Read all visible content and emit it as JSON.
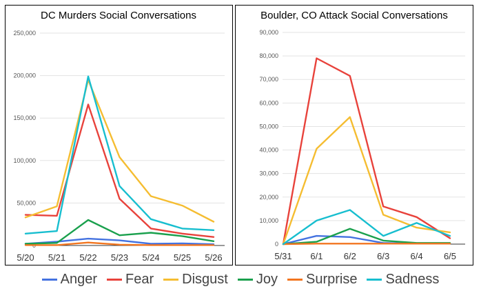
{
  "legend": {
    "items": [
      {
        "label": "Anger",
        "color": "#4472e0"
      },
      {
        "label": "Fear",
        "color": "#e8423b"
      },
      {
        "label": "Disgust",
        "color": "#f5bd31"
      },
      {
        "label": "Joy",
        "color": "#1aa04d"
      },
      {
        "label": "Surprise",
        "color": "#f2751f"
      },
      {
        "label": "Sadness",
        "color": "#17becf"
      }
    ]
  },
  "chart_data": [
    {
      "type": "line",
      "title": "DC Murders Social Conversations",
      "categories": [
        "5/20",
        "5/21",
        "5/22",
        "5/23",
        "5/24",
        "5/25",
        "5/26"
      ],
      "ylim": [
        0,
        250000
      ],
      "yticks": [
        0,
        50000,
        100000,
        150000,
        200000,
        250000
      ],
      "ytick_labels": [
        "0",
        "50,000",
        "100,000",
        "150,000",
        "200,000",
        "250,000"
      ],
      "grid": true,
      "series": [
        {
          "name": "Anger",
          "color": "#4472e0",
          "values": [
            2000,
            4500,
            8000,
            6000,
            2000,
            2500,
            1500
          ]
        },
        {
          "name": "Fear",
          "color": "#e8423b",
          "values": [
            36000,
            35000,
            166000,
            55000,
            20000,
            14000,
            10000
          ]
        },
        {
          "name": "Disgust",
          "color": "#f5bd31",
          "values": [
            33000,
            46000,
            195000,
            104000,
            58000,
            47000,
            28000
          ]
        },
        {
          "name": "Joy",
          "color": "#1aa04d",
          "values": [
            2000,
            3000,
            30000,
            12000,
            15000,
            11000,
            5000
          ]
        },
        {
          "name": "Surprise",
          "color": "#f2751f",
          "values": [
            500,
            500,
            3500,
            1000,
            500,
            500,
            500
          ]
        },
        {
          "name": "Sadness",
          "color": "#17becf",
          "values": [
            14000,
            17000,
            199000,
            70000,
            31000,
            20000,
            18000
          ]
        }
      ]
    },
    {
      "type": "line",
      "title": "Boulder, CO Attack Social Conversations",
      "categories": [
        "5/31",
        "6/1",
        "6/2",
        "6/3",
        "6/4",
        "6/5"
      ],
      "ylim": [
        0,
        90000
      ],
      "yticks": [
        0,
        10000,
        20000,
        30000,
        40000,
        50000,
        60000,
        70000,
        80000,
        90000
      ],
      "ytick_labels": [
        "0",
        "10,000",
        "20,000",
        "30,000",
        "40,000",
        "50,000",
        "60,000",
        "70,000",
        "80,000",
        "90,000"
      ],
      "grid": true,
      "series": [
        {
          "name": "Anger",
          "color": "#4472e0",
          "values": [
            0,
            3500,
            3000,
            500,
            200,
            300
          ]
        },
        {
          "name": "Fear",
          "color": "#e8423b",
          "values": [
            0,
            79000,
            71500,
            16000,
            11500,
            2500
          ]
        },
        {
          "name": "Disgust",
          "color": "#f5bd31",
          "values": [
            0,
            40500,
            54000,
            12500,
            7000,
            5000
          ]
        },
        {
          "name": "Joy",
          "color": "#1aa04d",
          "values": [
            0,
            1000,
            6500,
            1500,
            500,
            500
          ]
        },
        {
          "name": "Surprise",
          "color": "#f2751f",
          "values": [
            0,
            200,
            200,
            200,
            200,
            200
          ]
        },
        {
          "name": "Sadness",
          "color": "#17becf",
          "values": [
            0,
            10000,
            14500,
            3500,
            9000,
            3500
          ]
        }
      ]
    }
  ]
}
